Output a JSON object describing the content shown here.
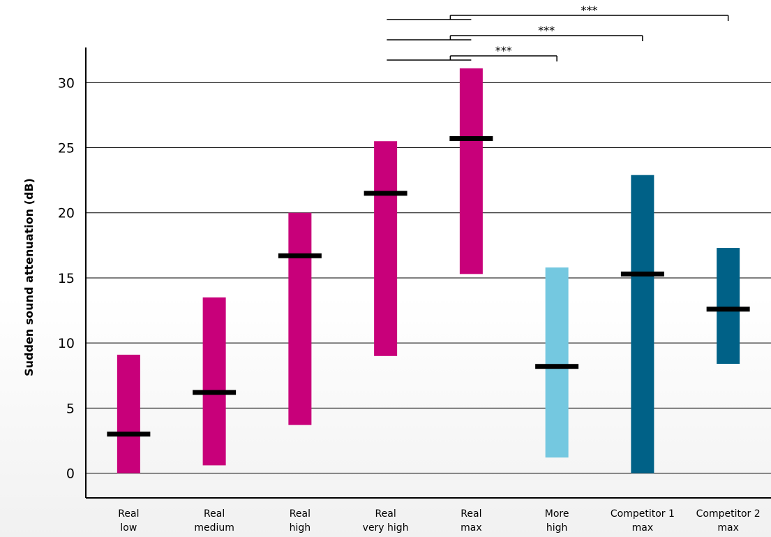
{
  "chart_data": {
    "type": "bar",
    "subtype": "range-bar-with-median",
    "ylabel": "Sudden sound attenuation (dB)",
    "xlabel": "",
    "ylim": [
      -1.9,
      32.7
    ],
    "yticks": [
      0,
      5,
      10,
      15,
      20,
      25,
      30
    ],
    "grid": true,
    "categories": [
      [
        "Real",
        "low"
      ],
      [
        "Real",
        "medium"
      ],
      [
        "Real",
        "high"
      ],
      [
        "Real",
        "very high"
      ],
      [
        "Real",
        "max"
      ],
      [
        "More",
        "high"
      ],
      [
        "Competitor 1",
        "max"
      ],
      [
        "Competitor 2",
        "max"
      ]
    ],
    "bars": [
      {
        "low": 0.0,
        "high": 9.1,
        "median": 3.0,
        "color": "#c8007a"
      },
      {
        "low": 0.6,
        "high": 13.5,
        "median": 6.2,
        "color": "#c8007a"
      },
      {
        "low": 3.7,
        "high": 20.0,
        "median": 16.7,
        "color": "#c8007a"
      },
      {
        "low": 9.0,
        "high": 25.5,
        "median": 21.5,
        "color": "#c8007a"
      },
      {
        "low": 15.3,
        "high": 31.1,
        "median": 25.7,
        "color": "#c8007a"
      },
      {
        "low": 1.2,
        "high": 15.8,
        "median": 8.2,
        "color": "#74c8e0"
      },
      {
        "low": 0.0,
        "high": 22.9,
        "median": 15.3,
        "color": "#006187"
      },
      {
        "low": 8.4,
        "high": 17.3,
        "median": 12.6,
        "color": "#006187"
      }
    ],
    "significance": [
      {
        "from": 4,
        "to": 5,
        "label": "***"
      },
      {
        "from": 4,
        "to": 6,
        "label": "***"
      },
      {
        "from": 4,
        "to": 7,
        "label": "***"
      }
    ]
  }
}
